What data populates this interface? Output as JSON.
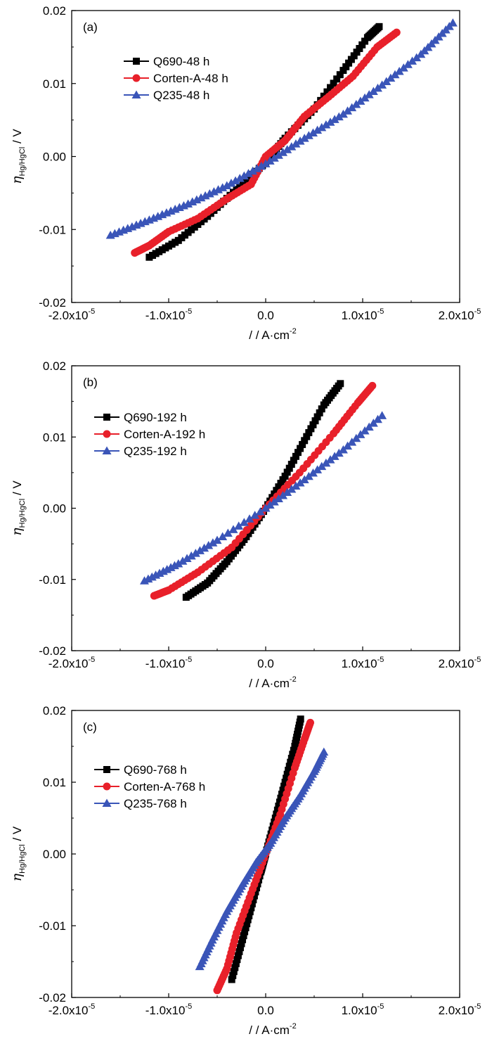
{
  "colors": {
    "Q690": "#000000",
    "CortenA": "#e8202a",
    "Q235": "#3a55b8"
  },
  "chart_data": [
    {
      "type": "line",
      "panel_label": "(a)",
      "xlabel_pre": "/ / A·cm",
      "xlabel_sup": "-2",
      "ylabel_eta": "η",
      "ylabel_sub": "Hg/HgCl",
      "ylabel_unit": " / V",
      "xlim": [
        -2e-05,
        2e-05
      ],
      "ylim": [
        -0.02,
        0.02
      ],
      "xticks": [
        {
          "value": -2e-05,
          "mant": "-2.0x10",
          "exp": "-5"
        },
        {
          "value": -1e-05,
          "mant": "-1.0x10",
          "exp": "-5"
        },
        {
          "value": 0,
          "mant": "0.0",
          "exp": ""
        },
        {
          "value": 1e-05,
          "mant": "1.0x10",
          "exp": "-5"
        },
        {
          "value": 2e-05,
          "mant": "2.0x10",
          "exp": "-5"
        }
      ],
      "yticks": [
        {
          "value": 0.02,
          "label": "0.02"
        },
        {
          "value": 0.01,
          "label": "0.01"
        },
        {
          "value": 0.0,
          "label": "0.00"
        },
        {
          "value": -0.01,
          "label": "-0.01"
        },
        {
          "value": -0.02,
          "label": "-0.02"
        }
      ],
      "series": [
        {
          "name": "Q690-48 h",
          "color_key": "Q690",
          "marker": "square",
          "points": [
            [
              -1.2e-05,
              -0.0138
            ],
            [
              -9e-06,
              -0.0115
            ],
            [
              -6e-06,
              -0.0082
            ],
            [
              -3e-06,
              -0.0045
            ],
            [
              0,
              -0.0008
            ],
            [
              2e-06,
              0.0025
            ],
            [
              5e-06,
              0.0065
            ],
            [
              8e-06,
              0.0118
            ],
            [
              1.05e-05,
              0.0163
            ],
            [
              1.17e-05,
              0.0178
            ]
          ]
        },
        {
          "name": "Corten-A-48 h",
          "color_key": "CortenA",
          "marker": "circle",
          "points": [
            [
              -1.35e-05,
              -0.0132
            ],
            [
              -1.2e-05,
              -0.0122
            ],
            [
              -1e-05,
              -0.0103
            ],
            [
              -7e-06,
              -0.0085
            ],
            [
              -4e-06,
              -0.0058
            ],
            [
              -1.5e-06,
              -0.0038
            ],
            [
              0,
              0.0
            ],
            [
              2e-06,
              0.0022
            ],
            [
              4e-06,
              0.0055
            ],
            [
              6.5e-06,
              0.0082
            ],
            [
              9e-06,
              0.011
            ],
            [
              1.15e-05,
              0.015
            ],
            [
              1.35e-05,
              0.017
            ]
          ]
        },
        {
          "name": "Q235-48 h",
          "color_key": "Q235",
          "marker": "triangle",
          "points": [
            [
              -1.6e-05,
              -0.0108
            ],
            [
              -1.2e-05,
              -0.0087
            ],
            [
              -8e-06,
              -0.0065
            ],
            [
              -4e-06,
              -0.004
            ],
            [
              0,
              -0.001
            ],
            [
              4e-06,
              0.0025
            ],
            [
              8e-06,
              0.0058
            ],
            [
              1.2e-05,
              0.0098
            ],
            [
              1.6e-05,
              0.014
            ],
            [
              1.93e-05,
              0.0183
            ]
          ]
        }
      ]
    },
    {
      "type": "line",
      "panel_label": "(b)",
      "xlabel_pre": "/ / A·cm",
      "xlabel_sup": "-2",
      "ylabel_eta": "η",
      "ylabel_sub": "Hg/HgCl",
      "ylabel_unit": " / V",
      "xlim": [
        -2e-05,
        2e-05
      ],
      "ylim": [
        -0.02,
        0.02
      ],
      "xticks": [
        {
          "value": -2e-05,
          "mant": "-2.0x10",
          "exp": "-5"
        },
        {
          "value": -1e-05,
          "mant": "-1.0x10",
          "exp": "-5"
        },
        {
          "value": 0,
          "mant": "0.0",
          "exp": ""
        },
        {
          "value": 1e-05,
          "mant": "1.0x10",
          "exp": "-5"
        },
        {
          "value": 2e-05,
          "mant": "2.0x10",
          "exp": "-5"
        }
      ],
      "yticks": [
        {
          "value": 0.02,
          "label": "0.02"
        },
        {
          "value": 0.01,
          "label": "0.01"
        },
        {
          "value": 0.0,
          "label": "0.00"
        },
        {
          "value": -0.01,
          "label": "-0.01"
        },
        {
          "value": -0.02,
          "label": "-0.02"
        }
      ],
      "series": [
        {
          "name": "Q690-192 h",
          "color_key": "Q690",
          "marker": "square",
          "points": [
            [
              -8.2e-06,
              -0.0125
            ],
            [
              -6e-06,
              -0.0105
            ],
            [
              -4e-06,
              -0.0075
            ],
            [
              -2e-06,
              -0.004
            ],
            [
              0,
              0.0
            ],
            [
              2e-06,
              0.0045
            ],
            [
              4e-06,
              0.0095
            ],
            [
              6e-06,
              0.0145
            ],
            [
              7.7e-06,
              0.0175
            ]
          ]
        },
        {
          "name": "Corten-A-192 h",
          "color_key": "CortenA",
          "marker": "circle",
          "points": [
            [
              -1.15e-05,
              -0.0123
            ],
            [
              -1e-05,
              -0.0115
            ],
            [
              -7e-06,
              -0.009
            ],
            [
              -3.5e-06,
              -0.0055
            ],
            [
              0,
              0.0
            ],
            [
              3.5e-06,
              0.005
            ],
            [
              7e-06,
              0.0105
            ],
            [
              9.5e-06,
              0.0148
            ],
            [
              1.1e-05,
              0.0172
            ]
          ]
        },
        {
          "name": "Q235-192 h",
          "color_key": "Q235",
          "marker": "triangle",
          "points": [
            [
              -1.25e-05,
              -0.0102
            ],
            [
              -9e-06,
              -0.0078
            ],
            [
              -5e-06,
              -0.0045
            ],
            [
              0,
              0.0
            ],
            [
              4e-06,
              0.004
            ],
            [
              8e-06,
              0.0082
            ],
            [
              1.2e-05,
              0.013
            ]
          ]
        }
      ]
    },
    {
      "type": "line",
      "panel_label": "(c)",
      "xlabel_pre": "/ / A·cm",
      "xlabel_sup": "-2",
      "ylabel_eta": "η",
      "ylabel_sub": "Hg/HgCl",
      "ylabel_unit": " / V",
      "xlim": [
        -2e-05,
        2e-05
      ],
      "ylim": [
        -0.02,
        0.02
      ],
      "xticks": [
        {
          "value": -2e-05,
          "mant": "-2.0x10",
          "exp": "-5"
        },
        {
          "value": -1e-05,
          "mant": "-1.0x10",
          "exp": "-5"
        },
        {
          "value": 0,
          "mant": "0.0",
          "exp": ""
        },
        {
          "value": 1e-05,
          "mant": "1.0x10",
          "exp": "-5"
        },
        {
          "value": 2e-05,
          "mant": "2.0x10",
          "exp": "-5"
        }
      ],
      "yticks": [
        {
          "value": 0.02,
          "label": "0.02"
        },
        {
          "value": 0.01,
          "label": "0.01"
        },
        {
          "value": 0.0,
          "label": "0.00"
        },
        {
          "value": -0.01,
          "label": "-0.01"
        },
        {
          "value": -0.02,
          "label": "-0.02"
        }
      ],
      "series": [
        {
          "name": "Q690-768 h",
          "color_key": "Q690",
          "marker": "square",
          "points": [
            [
              -3.5e-06,
              -0.0175
            ],
            [
              -2.5e-06,
              -0.0125
            ],
            [
              -1.5e-06,
              -0.0075
            ],
            [
              -5e-07,
              -0.0025
            ],
            [
              0,
              0.0
            ],
            [
              1e-06,
              0.005
            ],
            [
              2e-06,
              0.01
            ],
            [
              3e-06,
              0.015
            ],
            [
              3.6e-06,
              0.0188
            ]
          ]
        },
        {
          "name": "Corten-A-768 h",
          "color_key": "CortenA",
          "marker": "circle",
          "points": [
            [
              -5e-06,
              -0.019
            ],
            [
              -4e-06,
              -0.016
            ],
            [
              -3e-06,
              -0.011
            ],
            [
              -1.5e-06,
              -0.0055
            ],
            [
              0,
              0.0
            ],
            [
              1.5e-06,
              0.0055
            ],
            [
              3e-06,
              0.012
            ],
            [
              4e-06,
              0.016
            ],
            [
              4.6e-06,
              0.0183
            ]
          ]
        },
        {
          "name": "Q235-768 h",
          "color_key": "Q235",
          "marker": "triangle",
          "points": [
            [
              -6.8e-06,
              -0.0157
            ],
            [
              -5.5e-06,
              -0.012
            ],
            [
              -4e-06,
              -0.008
            ],
            [
              -2.5e-06,
              -0.0045
            ],
            [
              -1e-06,
              -0.0012
            ],
            [
              5e-07,
              0.0015
            ],
            [
              2e-06,
              0.005
            ],
            [
              3.5e-06,
              0.008
            ],
            [
              5e-06,
              0.0115
            ],
            [
              6e-06,
              0.0142
            ]
          ]
        }
      ]
    }
  ]
}
